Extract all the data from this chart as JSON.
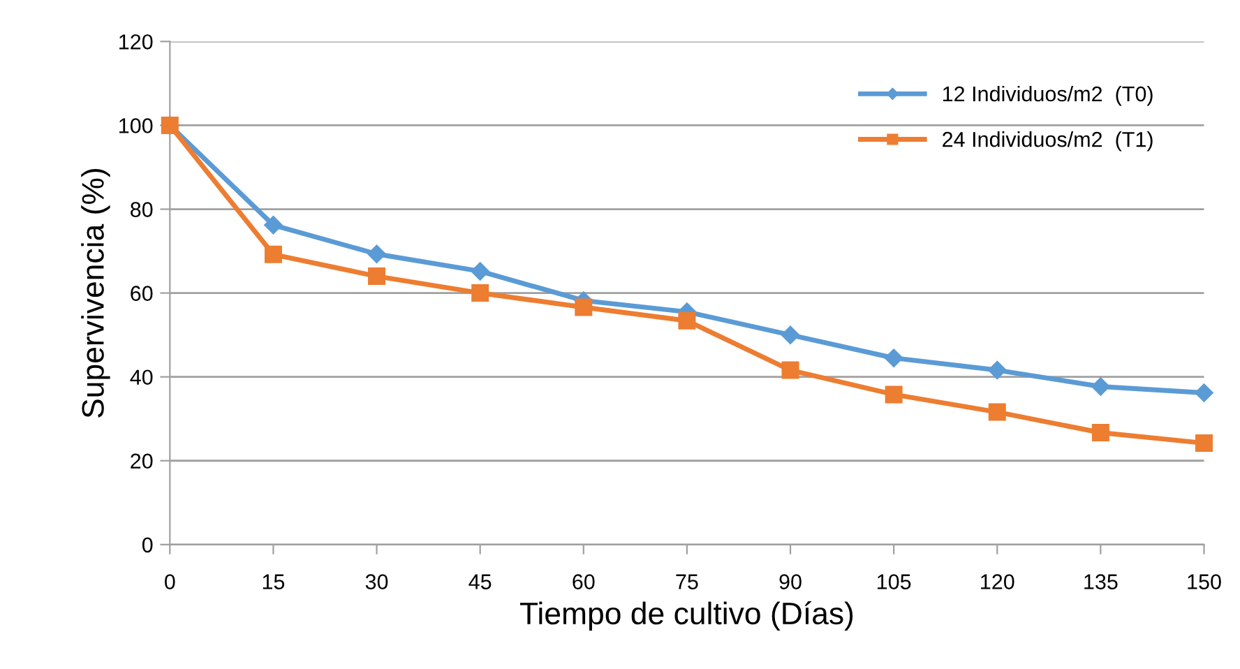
{
  "chart_data": {
    "type": "line",
    "xlabel": "Tiempo de cultivo (Días)",
    "ylabel": "Supervivencia (%)",
    "x": [
      0,
      15,
      30,
      45,
      60,
      75,
      90,
      105,
      120,
      135,
      150
    ],
    "series": [
      {
        "name": "12 Individuos/m2  (T0)",
        "color": "#5b9bd5",
        "marker": "diamond",
        "values": [
          100,
          76.2,
          69.3,
          65.2,
          58.2,
          55.5,
          50,
          44.5,
          41.6,
          37.7,
          36.2
        ]
      },
      {
        "name": "24 Individuos/m2  (T1)",
        "color": "#ed7d31",
        "marker": "square",
        "values": [
          100,
          69.2,
          64,
          60,
          56.6,
          53.4,
          41.6,
          35.8,
          31.6,
          26.7,
          24.2
        ]
      }
    ],
    "xlim": [
      0,
      150
    ],
    "xticks": [
      0,
      15,
      30,
      45,
      60,
      75,
      90,
      105,
      120,
      135,
      150
    ],
    "ylim": [
      0,
      120
    ],
    "yticks": [
      0,
      20,
      40,
      60,
      80,
      100,
      120
    ],
    "grid": "y",
    "legend": "top right",
    "line_style": "solid"
  }
}
